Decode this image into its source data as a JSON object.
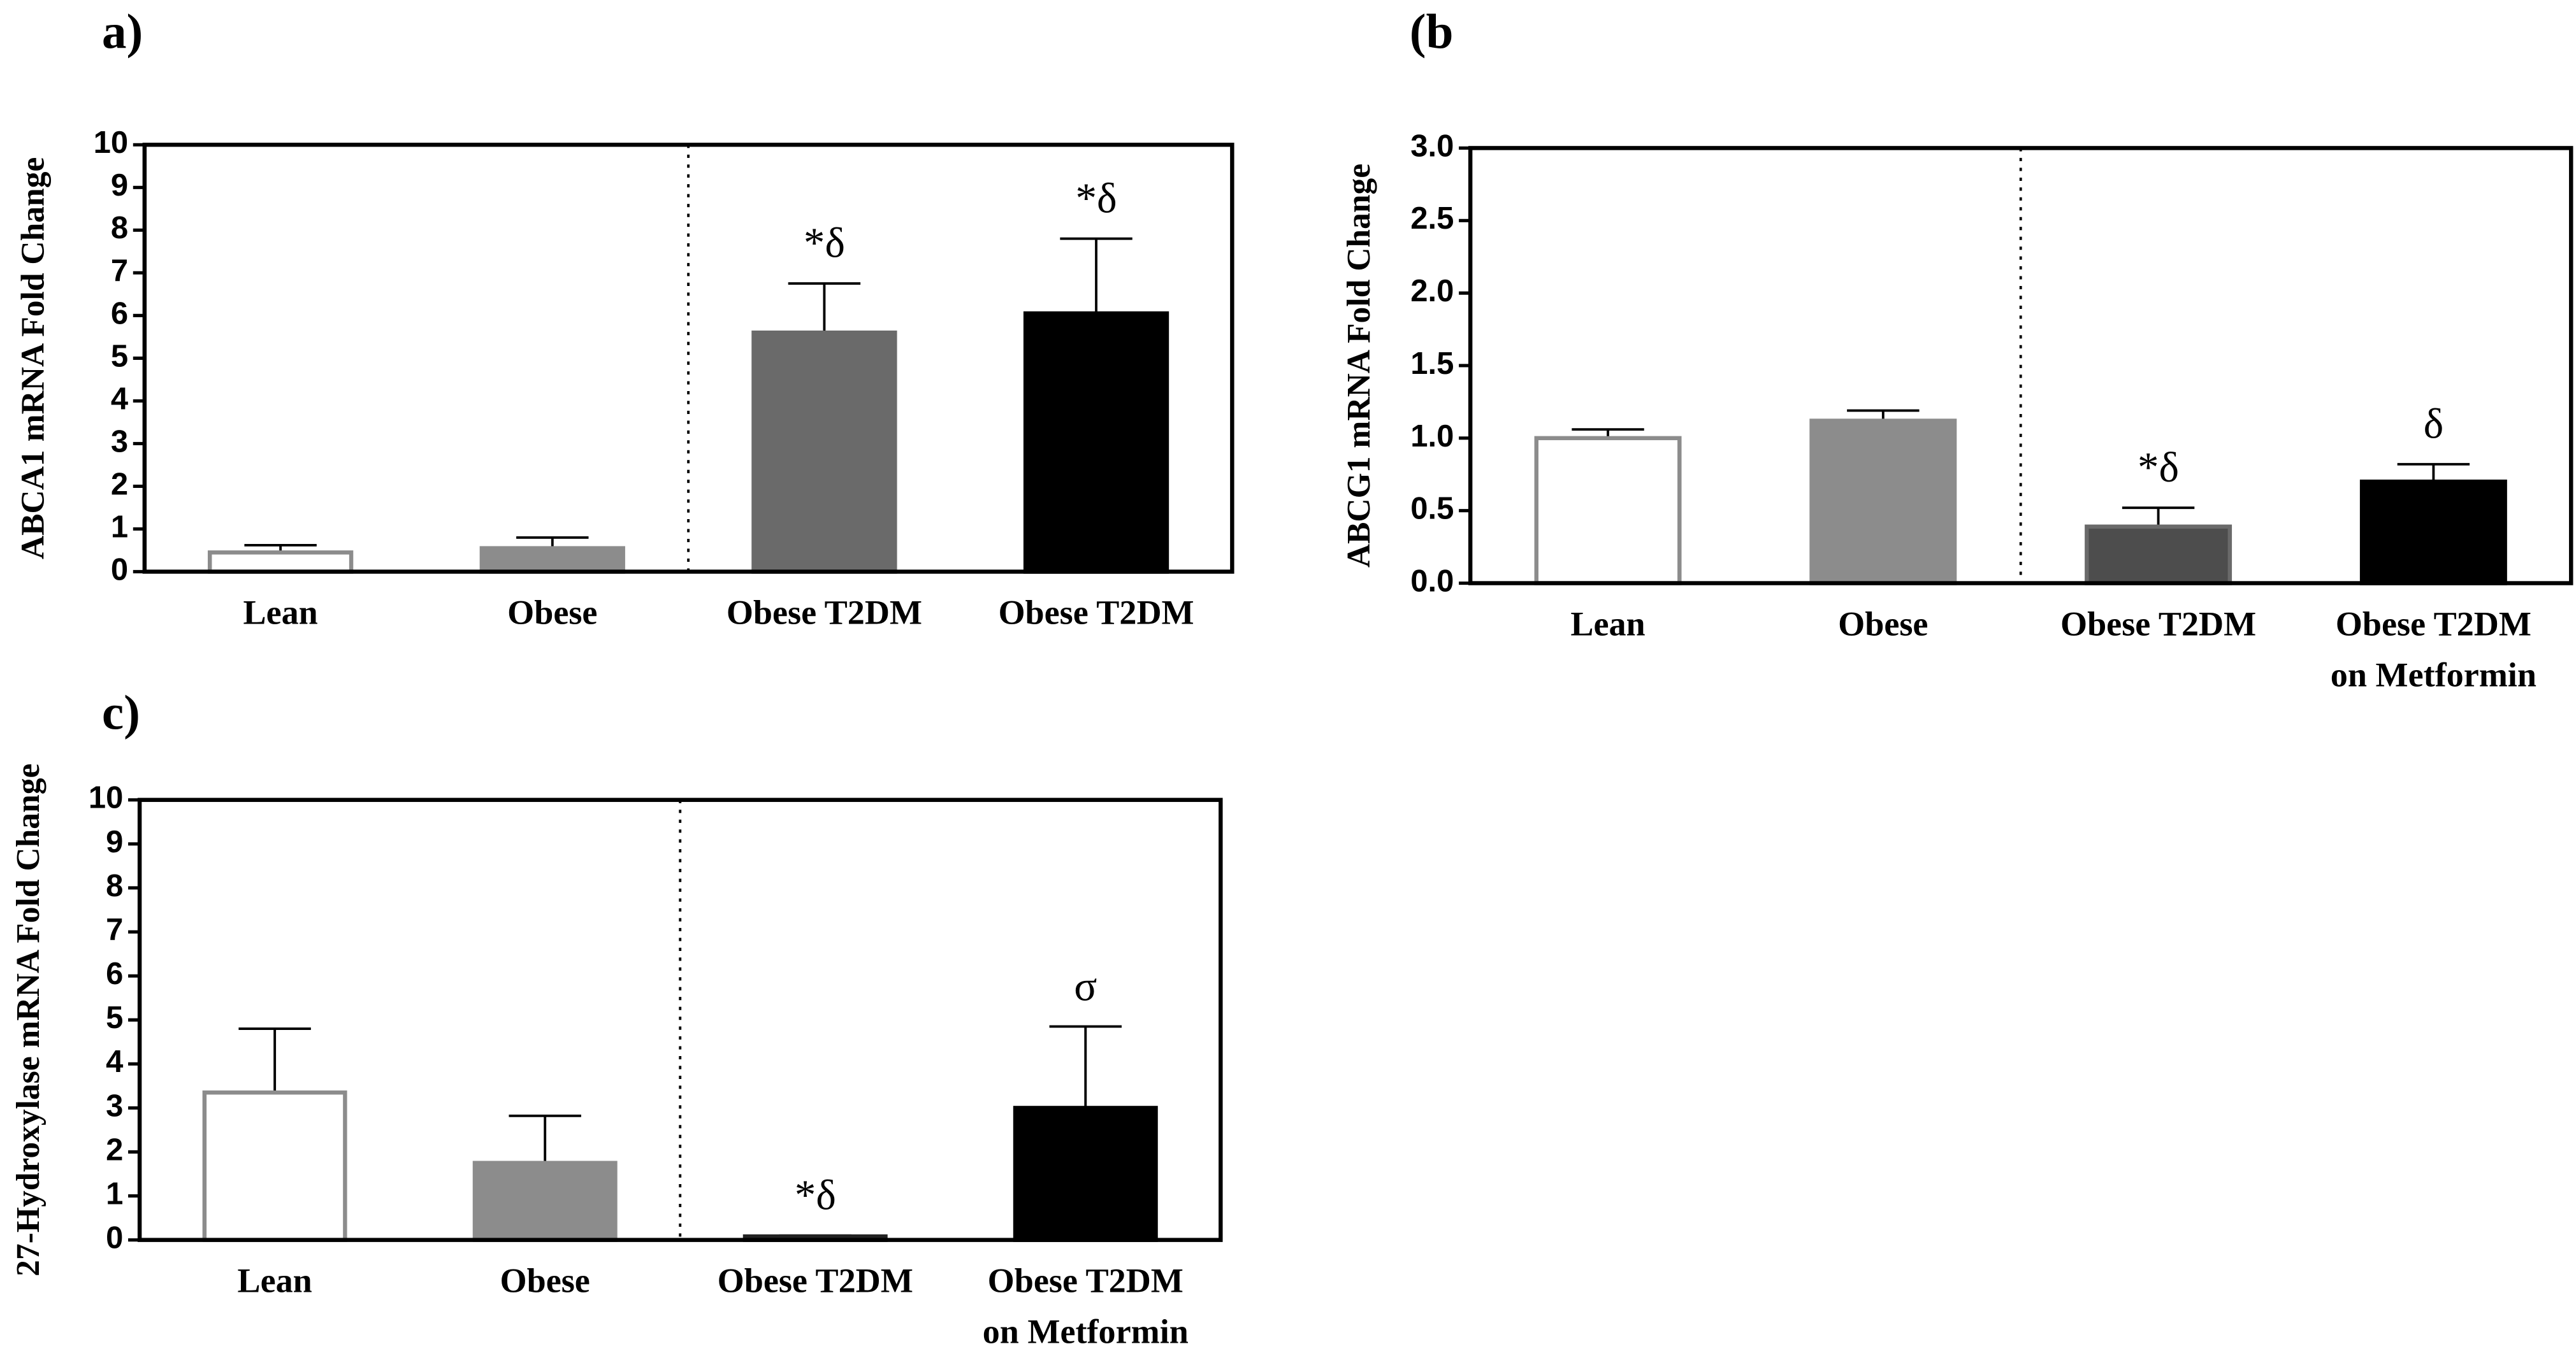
{
  "chart_data": [
    {
      "type": "bar",
      "title": "a)",
      "ylabel": "ABCA1 mRNA Fold Change",
      "categories": [
        [
          "Lean"
        ],
        [
          "Obese"
        ],
        [
          "Obese T2DM"
        ],
        [
          "Obese T2DM"
        ]
      ],
      "values": [
        0.45,
        0.55,
        5.6,
        6.05
      ],
      "errors": [
        0.17,
        0.25,
        1.15,
        1.75
      ],
      "annotations": [
        null,
        null,
        "*δ",
        "*δ"
      ],
      "colors": [
        "#ffffff",
        "#8c8c8c",
        "#6a6a6a",
        "#000000"
      ],
      "edge_colors": [
        "#8c8c8c",
        "#8c8c8c",
        "#6a6a6a",
        "#000000"
      ],
      "ylim": [
        0,
        10
      ],
      "yticks": [
        0,
        1,
        2,
        3,
        4,
        5,
        6,
        7,
        8,
        9,
        10
      ]
    },
    {
      "type": "bar",
      "title": "(b",
      "ylabel": "ABCG1 mRNA Fold Change",
      "categories": [
        [
          "Lean"
        ],
        [
          "Obese"
        ],
        [
          "Obese T2DM"
        ],
        [
          "Obese T2DM",
          "on Metformin"
        ]
      ],
      "values": [
        1.0,
        1.12,
        0.39,
        0.7
      ],
      "errors": [
        0.06,
        0.07,
        0.13,
        0.12
      ],
      "annotations": [
        null,
        null,
        "*δ",
        "δ"
      ],
      "colors": [
        "#ffffff",
        "#8c8c8c",
        "#4d4d4d",
        "#000000"
      ],
      "edge_colors": [
        "#8c8c8c",
        "#8c8c8c",
        "#6a6a6a",
        "#000000"
      ],
      "ylim": [
        0,
        3
      ],
      "yticks": [
        {
          "value": 0,
          "label": "0.0"
        },
        0.5,
        {
          "value": 1,
          "label": "1.0"
        },
        1.5,
        {
          "value": 2,
          "label": "2.0"
        },
        2.5,
        {
          "value": 3,
          "label": "3.0"
        }
      ]
    },
    {
      "type": "bar",
      "title": "c)",
      "ylabel": "27-Hydroxylase mRNA Fold Change",
      "categories": [
        [
          "Lean"
        ],
        [
          "Obese"
        ],
        [
          "Obese T2DM"
        ],
        [
          "Obese T2DM",
          "on Metformin"
        ]
      ],
      "values": [
        3.35,
        1.75,
        0.08,
        3.0
      ],
      "errors": [
        1.45,
        1.07,
        0.02,
        1.85
      ],
      "annotations": [
        null,
        null,
        "*δ",
        "σ"
      ],
      "colors": [
        "#ffffff",
        "#8c8c8c",
        "#222222",
        "#000000"
      ],
      "edge_colors": [
        "#8c8c8c",
        "#8c8c8c",
        "#222222",
        "#000000"
      ],
      "ylim": [
        0,
        10
      ],
      "yticks": [
        0,
        1,
        2,
        3,
        4,
        5,
        6,
        7,
        8,
        9,
        10
      ]
    }
  ]
}
